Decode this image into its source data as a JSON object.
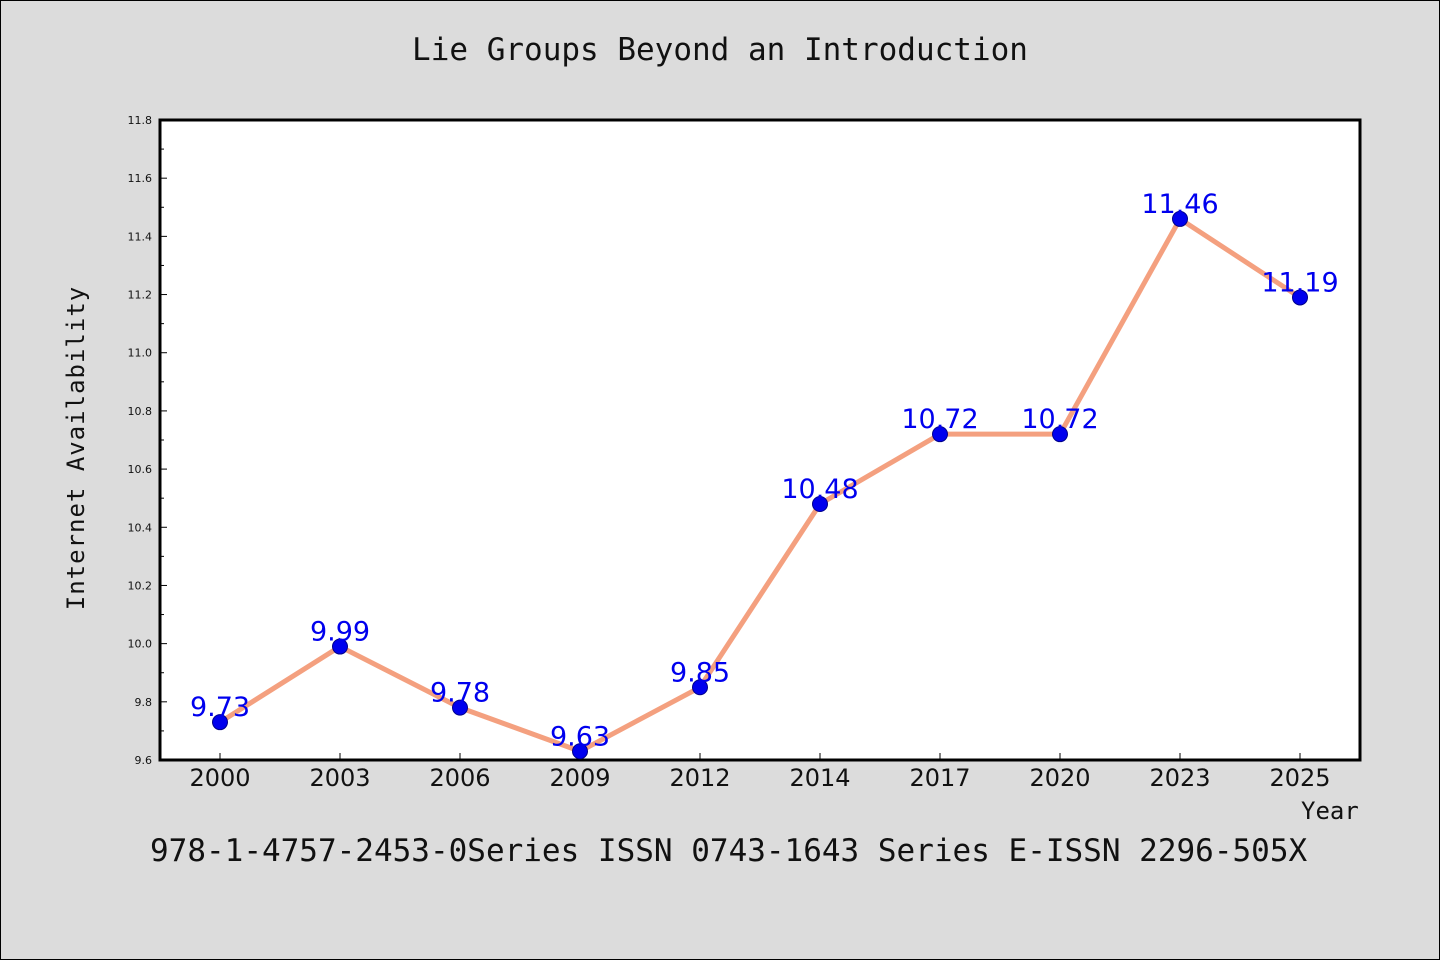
{
  "chart_data": {
    "type": "line",
    "title": "Lie Groups Beyond an Introduction",
    "xlabel": "Year",
    "ylabel": "Internet Availability",
    "categories": [
      "2000",
      "2003",
      "2006",
      "2009",
      "2012",
      "2014",
      "2017",
      "2020",
      "2023",
      "2025"
    ],
    "series": [
      {
        "values": [
          9.73,
          9.99,
          9.78,
          9.63,
          9.85,
          10.48,
          10.72,
          10.72,
          11.46,
          11.19
        ],
        "labels": [
          "9.73",
          "9.99",
          "9.78",
          "9.63",
          "9.85",
          "10.48",
          "10.72",
          "10.72",
          "11.46",
          "11.19"
        ]
      }
    ],
    "ylim": [
      9.6,
      11.8
    ],
    "yticks": [
      "9.6",
      "9.8",
      "10.0",
      "10.2",
      "10.4",
      "10.6",
      "10.8",
      "11.0",
      "11.2",
      "11.4",
      "11.6",
      "11.8"
    ],
    "grid": false,
    "colors": {
      "line": "#f4a07f",
      "marker": "#0000ee",
      "label": "#0000ee",
      "background": "#dcdcdc",
      "plot_bg": "#ffffff"
    }
  },
  "footer": "978-1-4757-2453-0Series ISSN 0743-1643 Series E-ISSN 2296-505X"
}
